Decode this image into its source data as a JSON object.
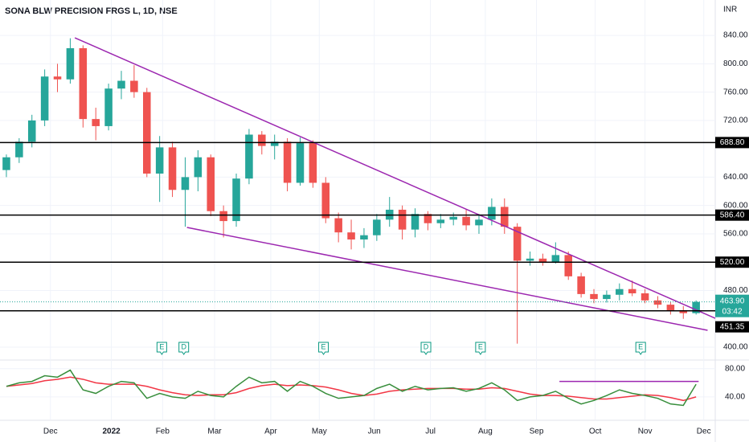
{
  "chart_data": {
    "type": "candlestick",
    "title": "SONA BLW PRECISION FRGS L, 1D, NSE",
    "currency": "INR",
    "xlim": [
      0,
      56
    ],
    "xticks": [
      {
        "value": 3.95,
        "label": "Dec"
      },
      {
        "value": 8.72,
        "label": "2022"
      },
      {
        "value": 12.73,
        "label": "Feb"
      },
      {
        "value": 16.8,
        "label": "Mar"
      },
      {
        "value": 21.2,
        "label": "Apr"
      },
      {
        "value": 25.0,
        "label": "May"
      },
      {
        "value": 29.3,
        "label": "Jun"
      },
      {
        "value": 33.7,
        "label": "Jul"
      },
      {
        "value": 38.0,
        "label": "Aug"
      },
      {
        "value": 42.0,
        "label": "Sep"
      },
      {
        "value": 46.6,
        "label": "Oct"
      },
      {
        "value": 50.5,
        "label": "Nov"
      },
      {
        "value": 55.1,
        "label": "Dec"
      }
    ],
    "ylim": [
      383,
      890
    ],
    "yticks": [
      {
        "value": 840,
        "label": "840.00"
      },
      {
        "value": 800,
        "label": "800.00"
      },
      {
        "value": 760,
        "label": "760.00"
      },
      {
        "value": 720,
        "label": "720.00"
      },
      {
        "value": 640,
        "label": "640.00"
      },
      {
        "value": 600,
        "label": "600.00"
      },
      {
        "value": 560,
        "label": "560.00"
      },
      {
        "value": 480,
        "label": "480.00"
      },
      {
        "value": 400,
        "label": "400.00"
      }
    ],
    "up_color": "#26a69a",
    "down_color": "#ef5350",
    "candles": {
      "open": [
        650,
        668,
        690,
        720,
        782,
        778,
        822,
        722,
        712,
        765,
        776,
        760,
        645,
        682,
        622,
        640,
        668,
        592,
        578,
        638,
        700,
        684,
        690,
        632,
        688,
        632,
        582,
        562,
        552,
        558,
        580,
        594,
        566,
        588,
        575,
        580,
        584,
        572,
        580,
        598,
        570,
        522,
        525,
        520,
        530,
        500,
        475,
        468,
        474,
        482,
        476,
        466,
        460,
        452,
        448
      ],
      "high": [
        672,
        695,
        728,
        792,
        800,
        836,
        826,
        738,
        772,
        790,
        798,
        766,
        698,
        690,
        668,
        678,
        672,
        600,
        645,
        708,
        705,
        700,
        695,
        696,
        692,
        640,
        590,
        580,
        568,
        588,
        612,
        600,
        596,
        592,
        588,
        590,
        595,
        588,
        610,
        610,
        575,
        535,
        532,
        548,
        535,
        505,
        482,
        480,
        490,
        494,
        482,
        472,
        464,
        458,
        466
      ],
      "low": [
        640,
        660,
        682,
        712,
        760,
        772,
        710,
        692,
        706,
        750,
        752,
        640,
        605,
        612,
        570,
        620,
        585,
        555,
        570,
        630,
        672,
        665,
        620,
        628,
        625,
        575,
        548,
        538,
        540,
        550,
        570,
        552,
        555,
        565,
        568,
        572,
        565,
        560,
        572,
        560,
        405,
        515,
        515,
        518,
        495,
        470,
        462,
        463,
        466,
        472,
        462,
        455,
        446,
        440,
        446
      ],
      "close": [
        668,
        690,
        720,
        782,
        778,
        822,
        722,
        712,
        765,
        776,
        760,
        645,
        682,
        622,
        640,
        668,
        592,
        578,
        638,
        700,
        684,
        690,
        632,
        688,
        632,
        582,
        562,
        552,
        558,
        580,
        594,
        566,
        588,
        575,
        580,
        584,
        572,
        580,
        598,
        570,
        522,
        525,
        520,
        530,
        500,
        475,
        468,
        474,
        482,
        476,
        466,
        460,
        452,
        448,
        463.9
      ]
    },
    "levels": [
      {
        "value": 688.8,
        "label": "688.80"
      },
      {
        "value": 586.4,
        "label": "586.40"
      },
      {
        "value": 520,
        "label": "520.00"
      },
      {
        "value": 451.35,
        "label": "451.35"
      }
    ],
    "last_price": {
      "value": 463.9,
      "label": "463.90"
    },
    "countdown": "03:42",
    "trendline_color": "#9c27b0",
    "trendlines": [
      {
        "x": [
          5.86,
          56
        ],
        "y": [
          836.6,
          440.8
        ]
      },
      {
        "x": [
          14.64,
          55.4
        ],
        "y": [
          569,
          423.8
        ]
      }
    ],
    "events": [
      {
        "label": "E",
        "x": 12.67
      },
      {
        "label": "D",
        "x": 14.39
      },
      {
        "label": "E",
        "x": 25.33
      },
      {
        "label": "D",
        "x": 33.35
      },
      {
        "label": "E",
        "x": 37.62
      },
      {
        "label": "E",
        "x": 50.16
      }
    ],
    "rsi": {
      "ylim": [
        8,
        90
      ],
      "yticks": [
        {
          "value": 80,
          "label": "80.00"
        },
        {
          "value": 40,
          "label": "40.00"
        }
      ],
      "color": "#388e3c",
      "ma_color": "#f23645",
      "values": [
        55,
        60,
        62,
        70,
        68,
        78,
        50,
        45,
        55,
        62,
        60,
        38,
        45,
        40,
        38,
        48,
        42,
        40,
        55,
        68,
        60,
        62,
        48,
        62,
        55,
        45,
        38,
        40,
        42,
        52,
        58,
        48,
        55,
        50,
        52,
        53,
        48,
        52,
        60,
        50,
        35,
        40,
        42,
        48,
        38,
        30,
        35,
        42,
        50,
        45,
        42,
        38,
        30,
        28,
        58
      ],
      "ma": [
        55,
        57,
        59,
        63,
        65,
        68,
        65,
        60,
        58,
        58,
        58,
        55,
        50,
        46,
        43,
        42,
        43,
        43,
        46,
        52,
        56,
        58,
        56,
        57,
        56,
        54,
        50,
        45,
        42,
        44,
        48,
        50,
        51,
        52,
        52,
        52,
        51,
        51,
        53,
        52,
        48,
        44,
        42,
        42,
        41,
        39,
        37,
        37,
        39,
        41,
        43,
        42,
        39,
        35,
        40
      ],
      "level_line": {
        "x": [
          43.8,
          54.7
        ],
        "y": [
          62,
          62
        ]
      }
    }
  }
}
